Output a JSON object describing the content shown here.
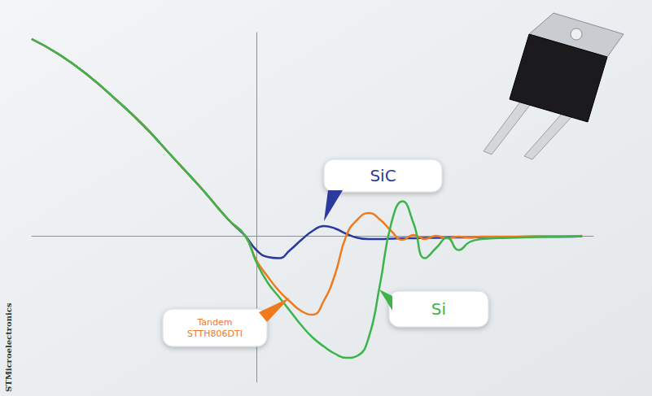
{
  "chart_data": {
    "type": "line",
    "credit": "STMicroelectronics",
    "xlim": [
      -40,
      60
    ],
    "ylim": [
      -3.6,
      5
    ],
    "tick_labels": false,
    "grid": false,
    "x": [
      -40,
      -35,
      -30,
      -25,
      -20,
      -15,
      -10,
      -5,
      -2,
      0,
      2,
      4,
      6,
      8,
      10,
      12,
      14,
      16,
      18,
      20,
      22,
      24,
      26,
      28,
      30,
      32,
      34,
      36,
      38,
      40,
      45,
      50,
      55,
      58
    ],
    "series": [
      {
        "name": "SiC",
        "color": "#2b3a9c",
        "values": [
          4.84,
          4.45,
          3.95,
          3.35,
          2.7,
          1.95,
          1.2,
          0.4,
          0,
          -0.35,
          -0.52,
          -0.55,
          -0.35,
          -0.1,
          0.12,
          0.24,
          0.18,
          0.05,
          -0.05,
          -0.08,
          -0.08,
          -0.07,
          -0.06,
          -0.06,
          -0.05,
          -0.05,
          -0.04,
          -0.04,
          -0.04,
          -0.03,
          -0.03,
          -0.02,
          -0.02,
          -0.01
        ]
      },
      {
        "name": "Tandem STTH806DTI",
        "color": "#f07a1e",
        "values": [
          4.84,
          4.45,
          3.95,
          3.35,
          2.7,
          1.95,
          1.2,
          0.4,
          0,
          -0.6,
          -1.0,
          -1.35,
          -1.62,
          -1.85,
          -1.94,
          -1.6,
          -0.95,
          0,
          0.4,
          0.56,
          0.4,
          0.12,
          -0.1,
          0.02,
          -0.08,
          0,
          -0.06,
          -0.02,
          -0.04,
          -0.02,
          -0.02,
          -0.01,
          -0.01,
          0
        ]
      },
      {
        "name": "Si",
        "color": "#3cb44a",
        "values": [
          4.84,
          4.45,
          3.95,
          3.35,
          2.7,
          1.95,
          1.2,
          0.4,
          0,
          -0.65,
          -1.15,
          -1.5,
          -1.85,
          -2.2,
          -2.5,
          -2.72,
          -2.9,
          -3.0,
          -2.95,
          -2.5,
          -1.2,
          0.3,
          0.85,
          0.3,
          -0.55,
          -0.3,
          -0.05,
          -0.35,
          -0.15,
          -0.08,
          -0.05,
          -0.03,
          -0.02,
          -0.01
        ]
      }
    ]
  }
}
